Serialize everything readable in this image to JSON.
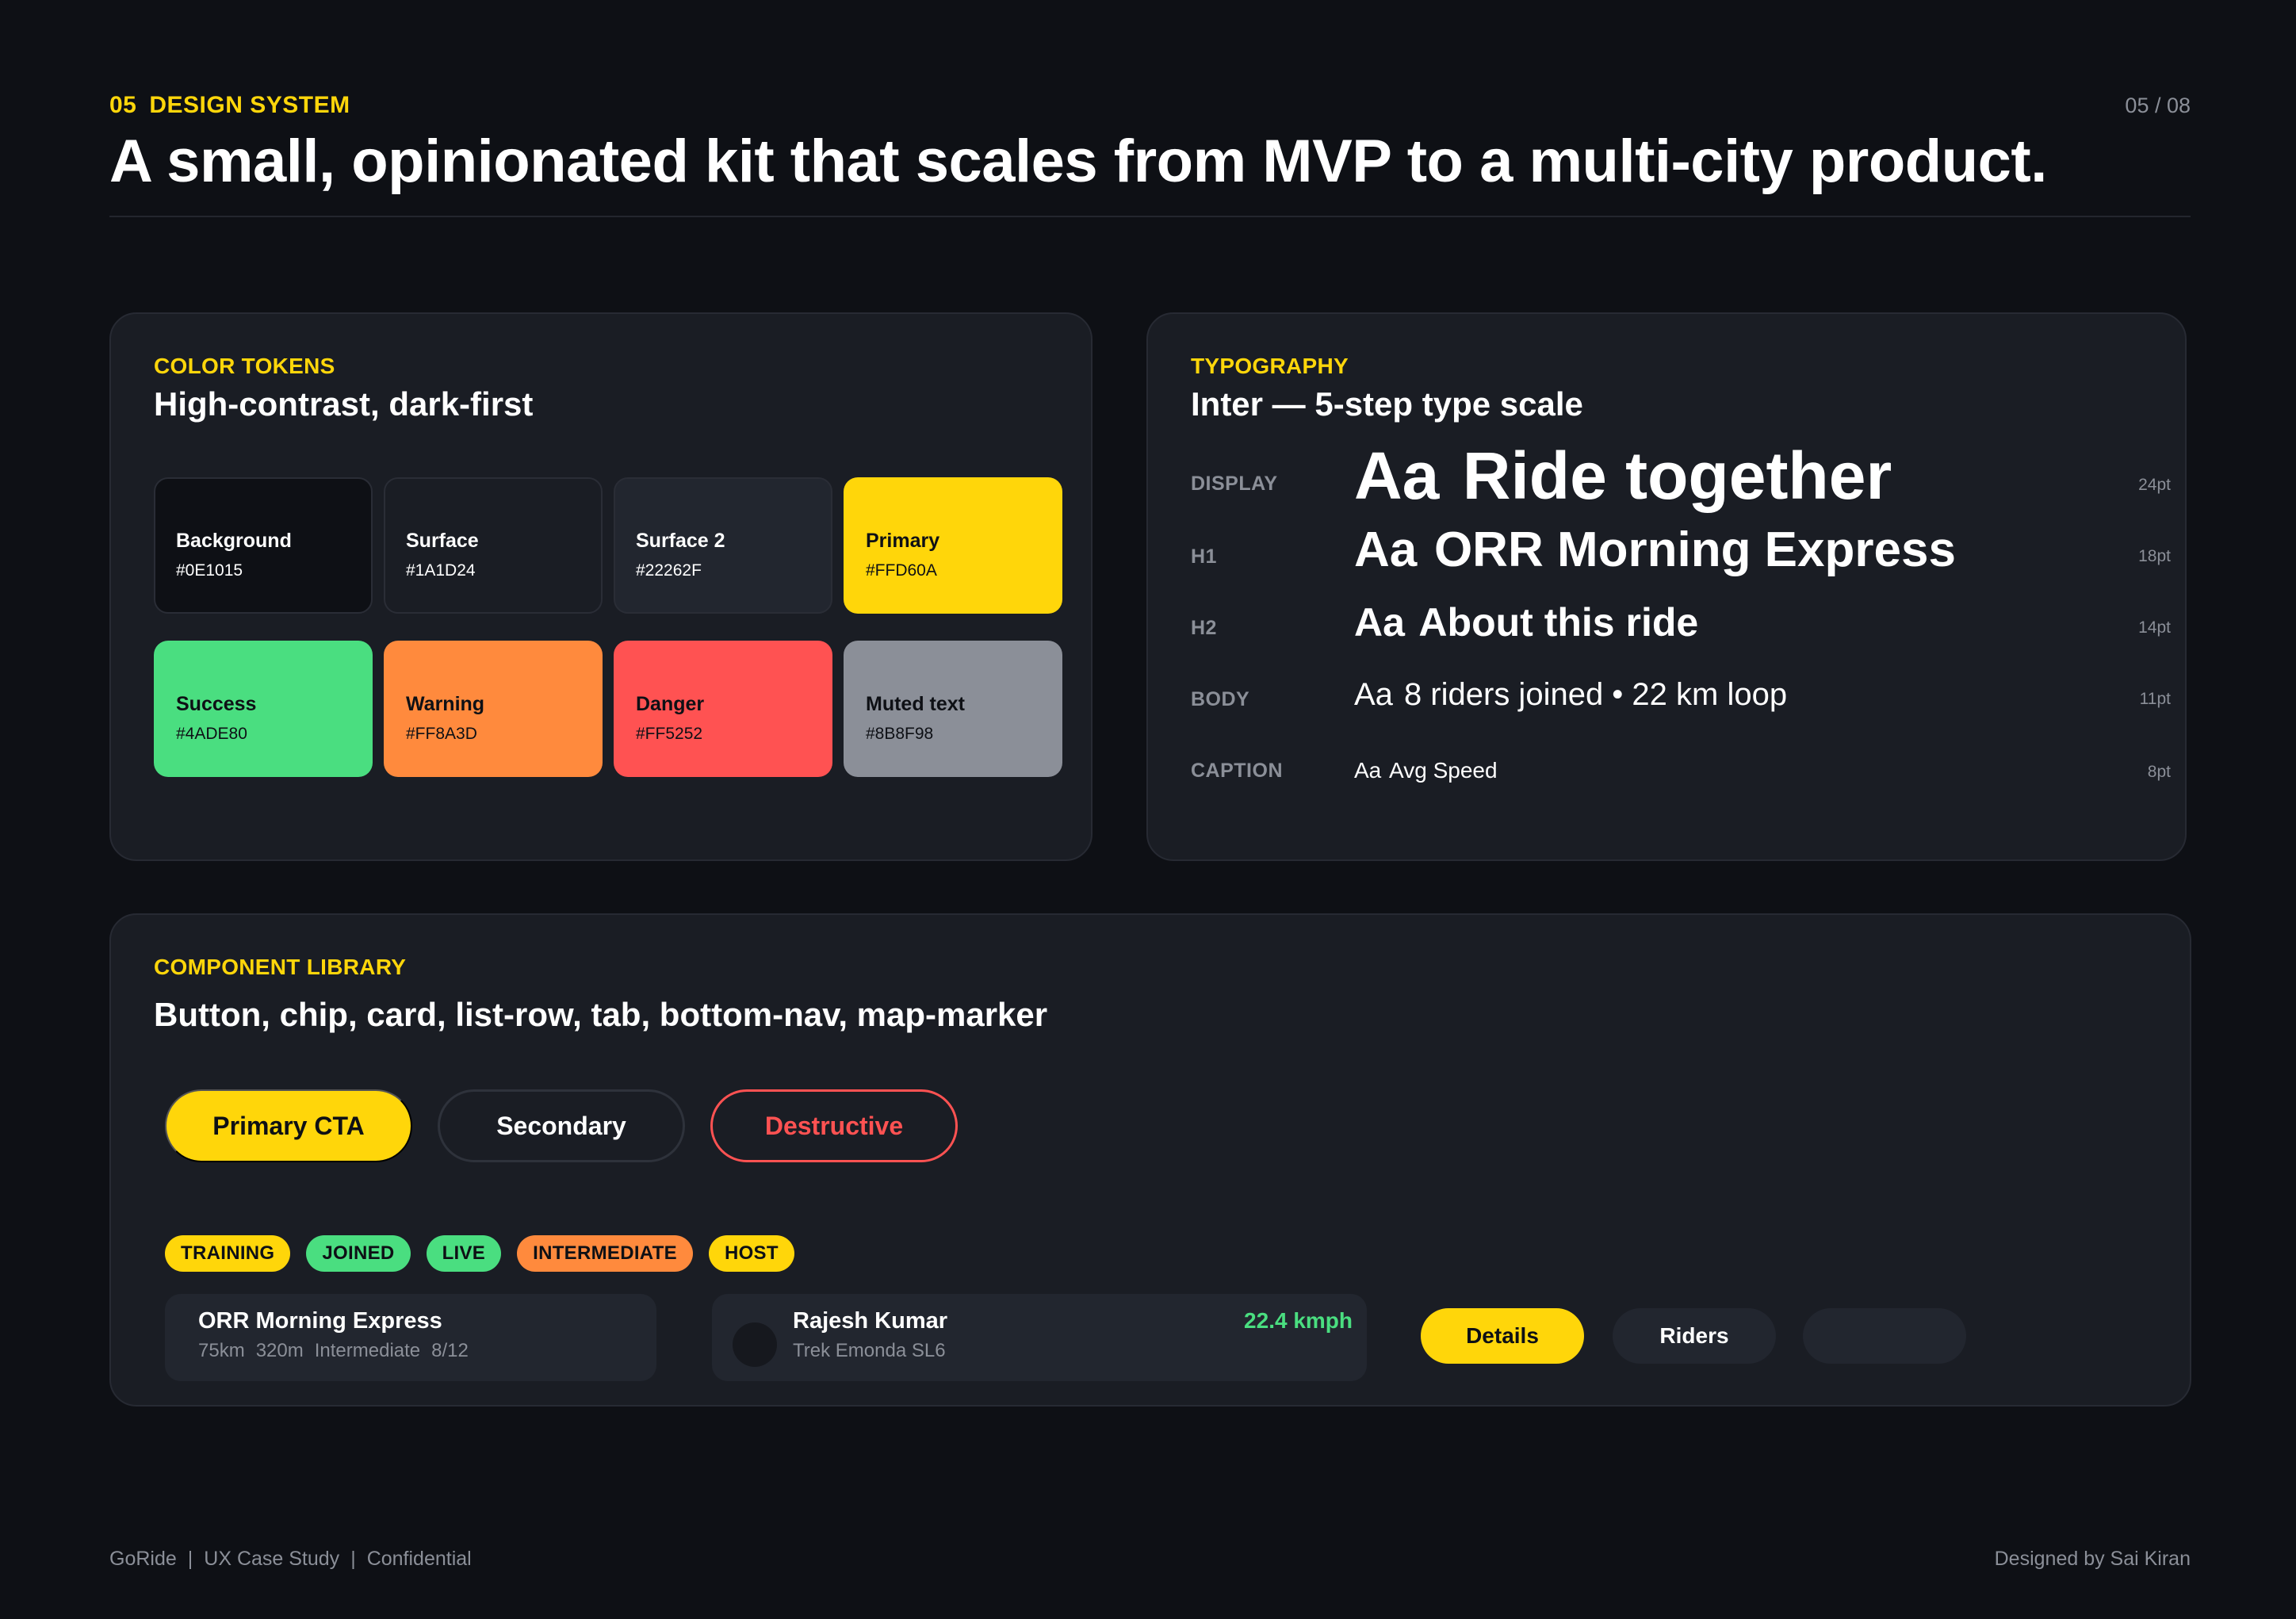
{
  "header": {
    "section_number": "05",
    "section_label": "DESIGN SYSTEM",
    "page_counter": "05 / 08",
    "title": "A small, opinionated kit that scales from MVP to a multi-city product."
  },
  "color_tokens": {
    "eyebrow": "COLOR TOKENS",
    "title": "High-contrast, dark-first",
    "swatches": [
      {
        "name": "Background",
        "hex": "#0E1015",
        "color": "#0E1015",
        "tone": "dark"
      },
      {
        "name": "Surface",
        "hex": "#1A1D24",
        "color": "#1A1D24",
        "tone": "dark"
      },
      {
        "name": "Surface 2",
        "hex": "#22262F",
        "color": "#22262F",
        "tone": "dark"
      },
      {
        "name": "Primary",
        "hex": "#FFD60A",
        "color": "#FFD60A",
        "tone": "light"
      },
      {
        "name": "Success",
        "hex": "#4ADE80",
        "color": "#4ADE80",
        "tone": "light"
      },
      {
        "name": "Warning",
        "hex": "#FF8A3D",
        "color": "#FF8A3D",
        "tone": "light"
      },
      {
        "name": "Danger",
        "hex": "#FF5252",
        "color": "#FF5252",
        "tone": "light"
      },
      {
        "name": "Muted text",
        "hex": "#8B8F98",
        "color": "#8B8F98",
        "tone": "light"
      }
    ]
  },
  "typography": {
    "eyebrow": "TYPOGRAPHY",
    "title": "Inter — 5-step type scale",
    "rows": [
      {
        "label": "DISPLAY",
        "aa": "Aa",
        "sample": "Ride together",
        "size": "24pt"
      },
      {
        "label": "H1",
        "aa": "Aa",
        "sample": "ORR Morning Express",
        "size": "18pt"
      },
      {
        "label": "H2",
        "aa": "Aa",
        "sample": "About this ride",
        "size": "14pt"
      },
      {
        "label": "BODY",
        "aa": "Aa",
        "sample": "8 riders joined • 22 km loop",
        "size": "11pt"
      },
      {
        "label": "CAPTION",
        "aa": "Aa",
        "sample": "Avg Speed",
        "size": "8pt"
      }
    ]
  },
  "components": {
    "eyebrow": "COMPONENT LIBRARY",
    "title": "Button, chip, card, list-row, tab, bottom-nav, map-marker",
    "buttons": {
      "primary": "Primary CTA",
      "secondary": "Secondary",
      "destructive": "Destructive"
    },
    "chips": [
      {
        "label": "TRAINING",
        "color": "#FFD60A"
      },
      {
        "label": "JOINED",
        "color": "#4ADE80"
      },
      {
        "label": "LIVE",
        "color": "#4ADE80"
      },
      {
        "label": "INTERMEDIATE",
        "color": "#FF8A3D"
      },
      {
        "label": "HOST",
        "color": "#FFD60A"
      }
    ],
    "ride_card": {
      "title": "ORR Morning Express",
      "distance": "75km",
      "elevation": "320m",
      "level": "Intermediate",
      "riders": "8/12"
    },
    "rider_row": {
      "name": "Rajesh Kumar",
      "bike": "Trek Emonda SL6",
      "speed": "22.4 kmph"
    },
    "tabs": {
      "active": "Details",
      "inactive": "Riders",
      "empty": ""
    }
  },
  "footer": {
    "brand": "GoRide",
    "doc_type": "UX Case Study",
    "confidentiality": "Confidential",
    "separator": "|",
    "credit": "Designed by Sai Kiran"
  },
  "colors": {
    "background": "#0E1015",
    "surface": "#1A1D24",
    "surface_2": "#22262F",
    "primary": "#FFD60A",
    "success": "#4ADE80",
    "warning": "#FF8A3D",
    "danger": "#FF5252",
    "muted": "#8B8F98"
  }
}
